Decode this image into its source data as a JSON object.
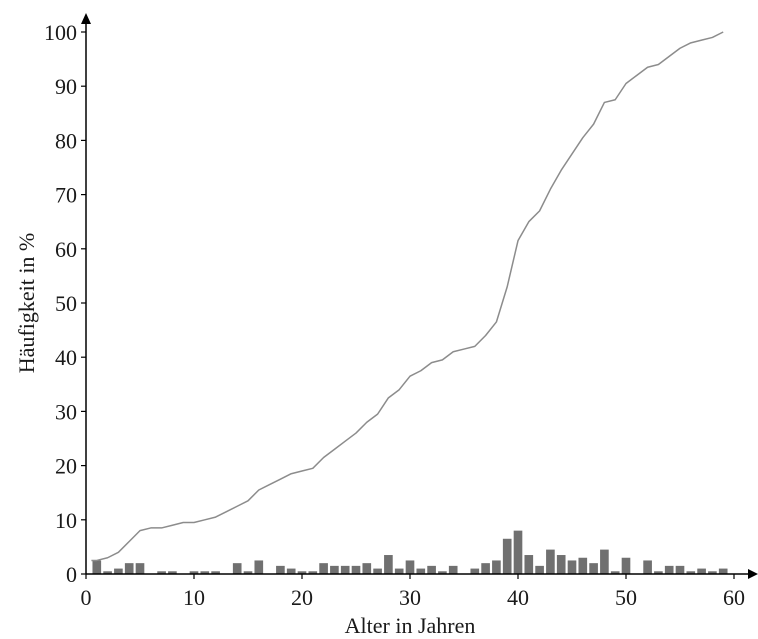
{
  "chart_data": {
    "type": "bar",
    "xlabel": "Alter in Jahren",
    "ylabel": "Häufigkeit in %",
    "xlim": [
      0,
      60
    ],
    "ylim": [
      0,
      100
    ],
    "x_ticks": [
      "0",
      "10",
      "20",
      "30",
      "40",
      "50",
      "60"
    ],
    "y_ticks": [
      "0",
      "10",
      "20",
      "30",
      "40",
      "50",
      "60",
      "70",
      "80",
      "90",
      "100"
    ],
    "grid": false,
    "legend": "none",
    "series": [
      {
        "type": "bar",
        "color": "#707070",
        "x": [
          1,
          2,
          3,
          4,
          5,
          7,
          8,
          10,
          11,
          12,
          14,
          15,
          16,
          18,
          19,
          20,
          21,
          22,
          23,
          24,
          25,
          26,
          27,
          28,
          29,
          30,
          31,
          32,
          33,
          34,
          36,
          37,
          38,
          39,
          40,
          41,
          42,
          43,
          44,
          45,
          46,
          47,
          48,
          49,
          50,
          52,
          53,
          54,
          55,
          56,
          57,
          58,
          59
        ],
        "values": [
          2.5,
          0.5,
          1,
          2,
          2,
          0.5,
          0.5,
          0.5,
          0.5,
          0.5,
          2,
          0.5,
          2.5,
          1.5,
          1,
          0.5,
          0.5,
          2,
          1.5,
          1.5,
          1.5,
          2,
          1,
          3.5,
          1,
          2.5,
          1,
          1.5,
          0.5,
          1.5,
          1,
          2,
          2.5,
          6.5,
          8,
          3.5,
          1.5,
          4.5,
          3.5,
          2.5,
          3,
          2,
          4.5,
          0.5,
          3,
          2.5,
          0.5,
          1.5,
          1.5,
          0.5,
          1,
          0.5,
          1
        ]
      },
      {
        "type": "line",
        "color": "#8c8c8c",
        "x": [
          0.5,
          1,
          2,
          3,
          4,
          5,
          6,
          7,
          8,
          9,
          10,
          11,
          12,
          13,
          14,
          15,
          16,
          17,
          18,
          19,
          20,
          21,
          22,
          23,
          24,
          25,
          26,
          27,
          28,
          29,
          30,
          31,
          32,
          33,
          34,
          35,
          36,
          37,
          38,
          39,
          40,
          41,
          42,
          43,
          44,
          45,
          46,
          47,
          48,
          49,
          50,
          51,
          52,
          53,
          54,
          55,
          56,
          57,
          58,
          59
        ],
        "values": [
          2.5,
          2.5,
          3,
          4,
          6,
          8,
          8.5,
          8.5,
          9,
          9.5,
          9.5,
          10,
          10.5,
          11.5,
          12.5,
          13.5,
          15.5,
          16.5,
          17.5,
          18.5,
          19,
          19.5,
          21.5,
          23,
          24.5,
          26,
          28,
          29.5,
          32.5,
          34,
          36.5,
          37.5,
          39,
          39.5,
          41,
          41.5,
          42,
          44,
          46.5,
          53,
          61.5,
          65,
          67,
          71,
          74.5,
          77.5,
          80.5,
          83,
          87,
          87.5,
          90.5,
          92,
          93.5,
          94,
          95.5,
          97,
          98,
          98.5,
          99,
          100
        ]
      }
    ]
  }
}
